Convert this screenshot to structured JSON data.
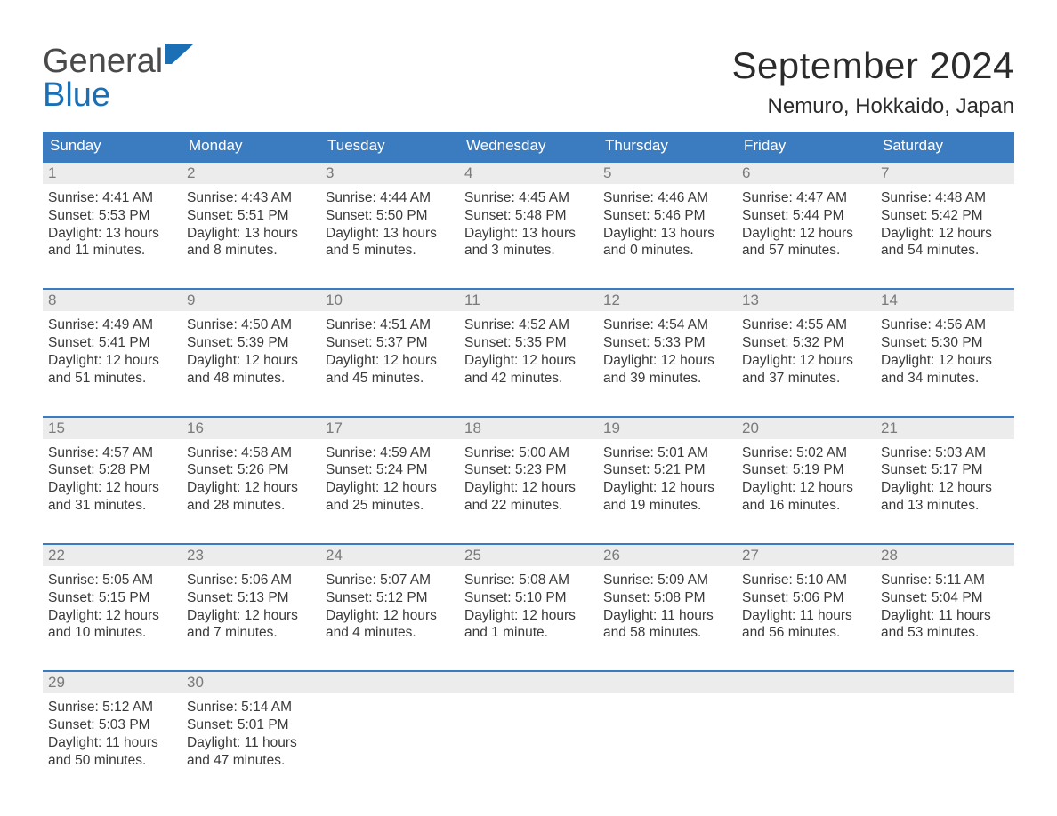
{
  "logo": {
    "word1": "General",
    "word2": "Blue",
    "accent_color": "#1a6fb5"
  },
  "title": "September 2024",
  "location": "Nemuro, Hokkaido, Japan",
  "colors": {
    "header_bg": "#3b7bbf",
    "header_text": "#ffffff",
    "daynum_bg": "#ececec",
    "daynum_text": "#7a7a7a",
    "body_text": "#3a3a3a",
    "week_border": "#3b7bbf",
    "page_bg": "#ffffff"
  },
  "layout": {
    "columns": 7,
    "cell_body_fontsize_pt": 11.5,
    "dow_fontsize_pt": 13,
    "title_fontsize_pt": 32,
    "location_fontsize_pt": 18
  },
  "days_of_week": [
    "Sunday",
    "Monday",
    "Tuesday",
    "Wednesday",
    "Thursday",
    "Friday",
    "Saturday"
  ],
  "weeks": [
    [
      {
        "n": "1",
        "sunrise": "Sunrise: 4:41 AM",
        "sunset": "Sunset: 5:53 PM",
        "dl1": "Daylight: 13 hours",
        "dl2": "and 11 minutes."
      },
      {
        "n": "2",
        "sunrise": "Sunrise: 4:43 AM",
        "sunset": "Sunset: 5:51 PM",
        "dl1": "Daylight: 13 hours",
        "dl2": "and 8 minutes."
      },
      {
        "n": "3",
        "sunrise": "Sunrise: 4:44 AM",
        "sunset": "Sunset: 5:50 PM",
        "dl1": "Daylight: 13 hours",
        "dl2": "and 5 minutes."
      },
      {
        "n": "4",
        "sunrise": "Sunrise: 4:45 AM",
        "sunset": "Sunset: 5:48 PM",
        "dl1": "Daylight: 13 hours",
        "dl2": "and 3 minutes."
      },
      {
        "n": "5",
        "sunrise": "Sunrise: 4:46 AM",
        "sunset": "Sunset: 5:46 PM",
        "dl1": "Daylight: 13 hours",
        "dl2": "and 0 minutes."
      },
      {
        "n": "6",
        "sunrise": "Sunrise: 4:47 AM",
        "sunset": "Sunset: 5:44 PM",
        "dl1": "Daylight: 12 hours",
        "dl2": "and 57 minutes."
      },
      {
        "n": "7",
        "sunrise": "Sunrise: 4:48 AM",
        "sunset": "Sunset: 5:42 PM",
        "dl1": "Daylight: 12 hours",
        "dl2": "and 54 minutes."
      }
    ],
    [
      {
        "n": "8",
        "sunrise": "Sunrise: 4:49 AM",
        "sunset": "Sunset: 5:41 PM",
        "dl1": "Daylight: 12 hours",
        "dl2": "and 51 minutes."
      },
      {
        "n": "9",
        "sunrise": "Sunrise: 4:50 AM",
        "sunset": "Sunset: 5:39 PM",
        "dl1": "Daylight: 12 hours",
        "dl2": "and 48 minutes."
      },
      {
        "n": "10",
        "sunrise": "Sunrise: 4:51 AM",
        "sunset": "Sunset: 5:37 PM",
        "dl1": "Daylight: 12 hours",
        "dl2": "and 45 minutes."
      },
      {
        "n": "11",
        "sunrise": "Sunrise: 4:52 AM",
        "sunset": "Sunset: 5:35 PM",
        "dl1": "Daylight: 12 hours",
        "dl2": "and 42 minutes."
      },
      {
        "n": "12",
        "sunrise": "Sunrise: 4:54 AM",
        "sunset": "Sunset: 5:33 PM",
        "dl1": "Daylight: 12 hours",
        "dl2": "and 39 minutes."
      },
      {
        "n": "13",
        "sunrise": "Sunrise: 4:55 AM",
        "sunset": "Sunset: 5:32 PM",
        "dl1": "Daylight: 12 hours",
        "dl2": "and 37 minutes."
      },
      {
        "n": "14",
        "sunrise": "Sunrise: 4:56 AM",
        "sunset": "Sunset: 5:30 PM",
        "dl1": "Daylight: 12 hours",
        "dl2": "and 34 minutes."
      }
    ],
    [
      {
        "n": "15",
        "sunrise": "Sunrise: 4:57 AM",
        "sunset": "Sunset: 5:28 PM",
        "dl1": "Daylight: 12 hours",
        "dl2": "and 31 minutes."
      },
      {
        "n": "16",
        "sunrise": "Sunrise: 4:58 AM",
        "sunset": "Sunset: 5:26 PM",
        "dl1": "Daylight: 12 hours",
        "dl2": "and 28 minutes."
      },
      {
        "n": "17",
        "sunrise": "Sunrise: 4:59 AM",
        "sunset": "Sunset: 5:24 PM",
        "dl1": "Daylight: 12 hours",
        "dl2": "and 25 minutes."
      },
      {
        "n": "18",
        "sunrise": "Sunrise: 5:00 AM",
        "sunset": "Sunset: 5:23 PM",
        "dl1": "Daylight: 12 hours",
        "dl2": "and 22 minutes."
      },
      {
        "n": "19",
        "sunrise": "Sunrise: 5:01 AM",
        "sunset": "Sunset: 5:21 PM",
        "dl1": "Daylight: 12 hours",
        "dl2": "and 19 minutes."
      },
      {
        "n": "20",
        "sunrise": "Sunrise: 5:02 AM",
        "sunset": "Sunset: 5:19 PM",
        "dl1": "Daylight: 12 hours",
        "dl2": "and 16 minutes."
      },
      {
        "n": "21",
        "sunrise": "Sunrise: 5:03 AM",
        "sunset": "Sunset: 5:17 PM",
        "dl1": "Daylight: 12 hours",
        "dl2": "and 13 minutes."
      }
    ],
    [
      {
        "n": "22",
        "sunrise": "Sunrise: 5:05 AM",
        "sunset": "Sunset: 5:15 PM",
        "dl1": "Daylight: 12 hours",
        "dl2": "and 10 minutes."
      },
      {
        "n": "23",
        "sunrise": "Sunrise: 5:06 AM",
        "sunset": "Sunset: 5:13 PM",
        "dl1": "Daylight: 12 hours",
        "dl2": "and 7 minutes."
      },
      {
        "n": "24",
        "sunrise": "Sunrise: 5:07 AM",
        "sunset": "Sunset: 5:12 PM",
        "dl1": "Daylight: 12 hours",
        "dl2": "and 4 minutes."
      },
      {
        "n": "25",
        "sunrise": "Sunrise: 5:08 AM",
        "sunset": "Sunset: 5:10 PM",
        "dl1": "Daylight: 12 hours",
        "dl2": "and 1 minute."
      },
      {
        "n": "26",
        "sunrise": "Sunrise: 5:09 AM",
        "sunset": "Sunset: 5:08 PM",
        "dl1": "Daylight: 11 hours",
        "dl2": "and 58 minutes."
      },
      {
        "n": "27",
        "sunrise": "Sunrise: 5:10 AM",
        "sunset": "Sunset: 5:06 PM",
        "dl1": "Daylight: 11 hours",
        "dl2": "and 56 minutes."
      },
      {
        "n": "28",
        "sunrise": "Sunrise: 5:11 AM",
        "sunset": "Sunset: 5:04 PM",
        "dl1": "Daylight: 11 hours",
        "dl2": "and 53 minutes."
      }
    ],
    [
      {
        "n": "29",
        "sunrise": "Sunrise: 5:12 AM",
        "sunset": "Sunset: 5:03 PM",
        "dl1": "Daylight: 11 hours",
        "dl2": "and 50 minutes."
      },
      {
        "n": "30",
        "sunrise": "Sunrise: 5:14 AM",
        "sunset": "Sunset: 5:01 PM",
        "dl1": "Daylight: 11 hours",
        "dl2": "and 47 minutes."
      },
      {
        "empty": true
      },
      {
        "empty": true
      },
      {
        "empty": true
      },
      {
        "empty": true
      },
      {
        "empty": true
      }
    ]
  ]
}
